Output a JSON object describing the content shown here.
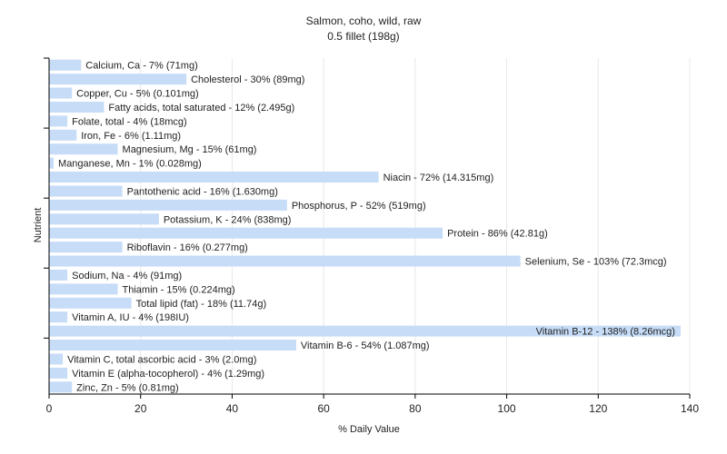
{
  "chart_data": {
    "type": "bar",
    "orientation": "horizontal",
    "title": "Salmon, coho, wild, raw",
    "subtitle": "0.5 fillet (198g)",
    "xlabel": "% Daily Value",
    "ylabel": "Nutrient",
    "xlim": [
      0,
      140
    ],
    "xticks": [
      0,
      20,
      40,
      60,
      80,
      100,
      120,
      140
    ],
    "grid": true,
    "bar_color": "#c6dcf7",
    "categories": [
      "Calcium, Ca",
      "Cholesterol",
      "Copper, Cu",
      "Fatty acids, total saturated",
      "Folate, total",
      "Iron, Fe",
      "Magnesium, Mg",
      "Manganese, Mn",
      "Niacin",
      "Pantothenic acid",
      "Phosphorus, P",
      "Potassium, K",
      "Protein",
      "Riboflavin",
      "Selenium, Se",
      "Sodium, Na",
      "Thiamin",
      "Total lipid (fat)",
      "Vitamin A, IU",
      "Vitamin B-12",
      "Vitamin B-6",
      "Vitamin C, total ascorbic acid",
      "Vitamin E (alpha-tocopherol)",
      "Zinc, Zn"
    ],
    "values": [
      7,
      30,
      5,
      12,
      4,
      6,
      15,
      1,
      72,
      16,
      52,
      24,
      86,
      16,
      103,
      4,
      15,
      18,
      4,
      138,
      54,
      3,
      4,
      5
    ],
    "labels": [
      "Calcium, Ca - 7% (71mg)",
      "Cholesterol - 30% (89mg)",
      "Copper, Cu - 5% (0.101mg)",
      "Fatty acids, total saturated - 12% (2.495g)",
      "Folate, total - 4% (18mcg)",
      "Iron, Fe - 6% (1.11mg)",
      "Magnesium, Mg - 15% (61mg)",
      "Manganese, Mn - 1% (0.028mg)",
      "Niacin - 72% (14.315mg)",
      "Pantothenic acid - 16% (1.630mg)",
      "Phosphorus, P - 52% (519mg)",
      "Potassium, K - 24% (838mg)",
      "Protein - 86% (42.81g)",
      "Riboflavin - 16% (0.277mg)",
      "Selenium, Se - 103% (72.3mcg)",
      "Sodium, Na - 4% (91mg)",
      "Thiamin - 15% (0.224mg)",
      "Total lipid (fat) - 18% (11.74g)",
      "Vitamin A, IU - 4% (198IU)",
      "Vitamin B-12 - 138% (8.26mcg)",
      "Vitamin B-6 - 54% (1.087mg)",
      "Vitamin C, total ascorbic acid - 3% (2.0mg)",
      "Vitamin E (alpha-tocopherol) - 4% (1.29mg)",
      "Zinc, Zn - 5% (0.81mg)"
    ]
  }
}
